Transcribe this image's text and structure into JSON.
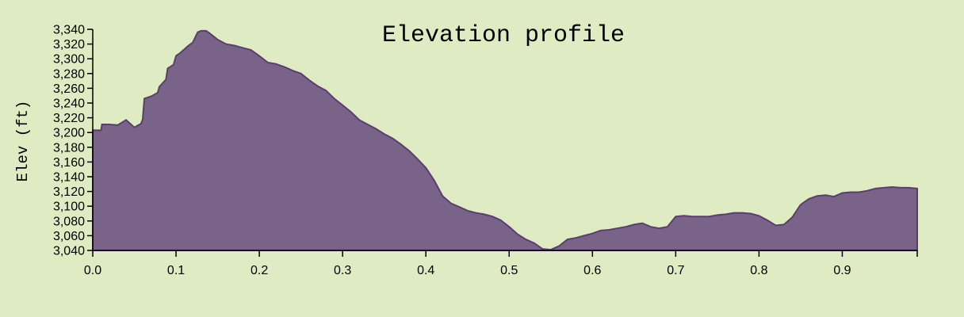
{
  "chart_data": {
    "type": "area",
    "title": "Elevation profile",
    "xlabel": "",
    "ylabel": "Elev (ft)",
    "xlim": [
      0.0,
      0.99
    ],
    "ylim": [
      3040,
      3340
    ],
    "x_ticks": [
      "0.0",
      "0.1",
      "0.2",
      "0.3",
      "0.4",
      "0.5",
      "0.6",
      "0.7",
      "0.8",
      "0.9"
    ],
    "y_ticks": [
      "3,040",
      "3,060",
      "3,080",
      "3,100",
      "3,120",
      "3,140",
      "3,160",
      "3,180",
      "3,200",
      "3,220",
      "3,240",
      "3,260",
      "3,280",
      "3,300",
      "3,320",
      "3,340"
    ],
    "grid": false,
    "colors": {
      "fill": "#7a6389",
      "stroke": "#5a3f6e",
      "background": "#dfebc2"
    },
    "series": [
      {
        "x": [
          0.0,
          0.01,
          0.011,
          0.02,
          0.03,
          0.04,
          0.05,
          0.058,
          0.06,
          0.062,
          0.07,
          0.078,
          0.08,
          0.088,
          0.09,
          0.097,
          0.1,
          0.105,
          0.11,
          0.115,
          0.12,
          0.126,
          0.13,
          0.136,
          0.14,
          0.15,
          0.16,
          0.17,
          0.18,
          0.19,
          0.2,
          0.21,
          0.22,
          0.23,
          0.24,
          0.25,
          0.26,
          0.27,
          0.28,
          0.29,
          0.3,
          0.31,
          0.32,
          0.33,
          0.34,
          0.35,
          0.36,
          0.37,
          0.38,
          0.39,
          0.4,
          0.41,
          0.42,
          0.43,
          0.44,
          0.45,
          0.46,
          0.47,
          0.48,
          0.49,
          0.5,
          0.51,
          0.52,
          0.53,
          0.54,
          0.55,
          0.56,
          0.57,
          0.58,
          0.59,
          0.6,
          0.61,
          0.62,
          0.63,
          0.64,
          0.65,
          0.66,
          0.67,
          0.68,
          0.69,
          0.7,
          0.71,
          0.72,
          0.73,
          0.74,
          0.75,
          0.76,
          0.77,
          0.78,
          0.79,
          0.8,
          0.81,
          0.82,
          0.83,
          0.84,
          0.85,
          0.86,
          0.87,
          0.88,
          0.89,
          0.9,
          0.91,
          0.92,
          0.93,
          0.94,
          0.95,
          0.96,
          0.97,
          0.98,
          0.99
        ],
        "values": [
          3203,
          3203,
          3211,
          3211,
          3210,
          3217,
          3207,
          3212,
          3218,
          3246,
          3249,
          3254,
          3262,
          3272,
          3287,
          3292,
          3304,
          3308,
          3313,
          3318,
          3322,
          3336,
          3338,
          3338,
          3335,
          3326,
          3320,
          3318,
          3315,
          3312,
          3304,
          3295,
          3293,
          3289,
          3284,
          3280,
          3271,
          3263,
          3257,
          3246,
          3237,
          3228,
          3217,
          3211,
          3205,
          3198,
          3192,
          3184,
          3175,
          3164,
          3152,
          3135,
          3114,
          3104,
          3099,
          3094,
          3091,
          3089,
          3086,
          3081,
          3072,
          3062,
          3055,
          3050,
          3042,
          3041,
          3046,
          3055,
          3057,
          3060,
          3063,
          3067,
          3068,
          3070,
          3072,
          3075,
          3077,
          3072,
          3070,
          3072,
          3086,
          3087,
          3086,
          3086,
          3086,
          3088,
          3089,
          3091,
          3091,
          3090,
          3087,
          3081,
          3074,
          3075,
          3085,
          3102,
          3110,
          3114,
          3115,
          3113,
          3118,
          3119,
          3119,
          3121,
          3124,
          3125,
          3126,
          3125,
          3125,
          3124
        ]
      }
    ]
  }
}
